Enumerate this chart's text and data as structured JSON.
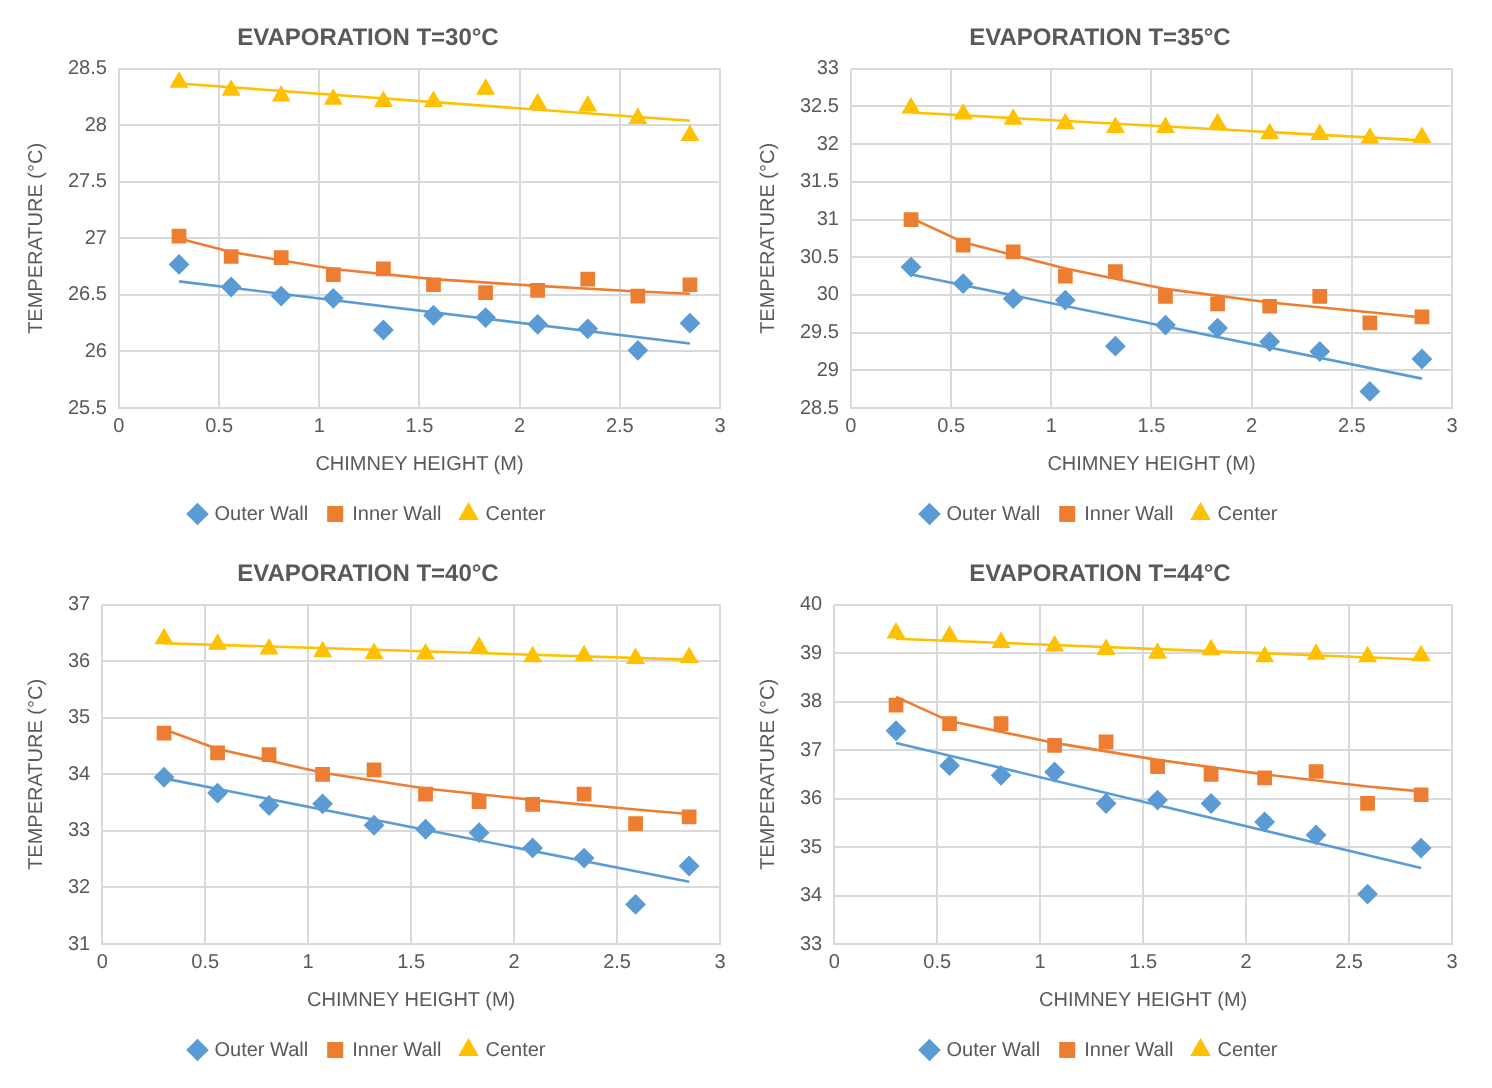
{
  "chart_data": [
    {
      "type": "scatter",
      "title": "EVAPORATION T=30°C",
      "xlabel": "CHIMNEY HEIGHT (M)",
      "ylabel": "TEMPERATURE (°C)",
      "xlim": [
        0,
        3
      ],
      "xticks": [
        0,
        0.5,
        1,
        1.5,
        2,
        2.5,
        3
      ],
      "ylim": [
        25.5,
        28.5
      ],
      "yticks": [
        25.5,
        26,
        26.5,
        27,
        27.5,
        28,
        28.5
      ],
      "grid": true,
      "legend": "bottom",
      "series": [
        {
          "name": "Outer Wall",
          "color": "#5b9bd5",
          "marker": "diamond",
          "x": [
            0.3,
            0.56,
            0.81,
            1.07,
            1.32,
            1.57,
            1.83,
            2.09,
            2.34,
            2.59,
            2.85
          ],
          "values": [
            26.77,
            26.57,
            26.49,
            26.47,
            26.19,
            26.32,
            26.3,
            26.24,
            26.2,
            26.01,
            26.25
          ]
        },
        {
          "name": "Inner Wall",
          "color": "#ed7d31",
          "marker": "square",
          "x": [
            0.3,
            0.56,
            0.81,
            1.07,
            1.32,
            1.57,
            1.83,
            2.09,
            2.34,
            2.59,
            2.85
          ],
          "values": [
            27.02,
            26.84,
            26.83,
            26.68,
            26.73,
            26.59,
            26.52,
            26.54,
            26.64,
            26.49,
            26.59
          ]
        },
        {
          "name": "Center",
          "color": "#ffc000",
          "marker": "triangle",
          "x": [
            0.3,
            0.56,
            0.81,
            1.07,
            1.32,
            1.57,
            1.83,
            2.09,
            2.34,
            2.59,
            2.85
          ],
          "values": [
            28.38,
            28.31,
            28.26,
            28.23,
            28.21,
            28.21,
            28.32,
            28.19,
            28.17,
            28.06,
            27.91
          ]
        },
        {
          "type": "line",
          "color": "#5b9bd5",
          "marker": "none",
          "x": [
            0.3,
            2.85
          ],
          "values": [
            26.62,
            26.07
          ]
        },
        {
          "type": "line",
          "color": "#ed7d31",
          "marker": "none",
          "x": [
            0.3,
            0.56,
            1.07,
            1.57,
            2.09,
            2.59,
            2.85
          ],
          "values": [
            27.0,
            26.88,
            26.73,
            26.64,
            26.58,
            26.53,
            26.51
          ]
        },
        {
          "type": "line",
          "color": "#ffc000",
          "marker": "none",
          "x": [
            0.3,
            2.85
          ],
          "values": [
            28.37,
            28.04
          ]
        }
      ]
    },
    {
      "type": "scatter",
      "title": "EVAPORATION T=35°C",
      "xlabel": "CHIMNEY HEIGHT (M)",
      "ylabel": "TEMPERATURE (°C)",
      "xlim": [
        0,
        3
      ],
      "xticks": [
        0,
        0.5,
        1,
        1.5,
        2,
        2.5,
        3
      ],
      "ylim": [
        28.5,
        33
      ],
      "yticks": [
        28.5,
        29,
        29.5,
        30,
        30.5,
        31,
        31.5,
        32,
        32.5,
        33
      ],
      "grid": true,
      "legend": "bottom",
      "series": [
        {
          "name": "Outer Wall",
          "color": "#5b9bd5",
          "marker": "diamond",
          "x": [
            0.3,
            0.56,
            0.81,
            1.07,
            1.32,
            1.57,
            1.83,
            2.09,
            2.34,
            2.59,
            2.85
          ],
          "values": [
            30.37,
            30.15,
            29.95,
            29.93,
            29.32,
            29.6,
            29.56,
            29.38,
            29.25,
            28.72,
            29.15
          ]
        },
        {
          "name": "Inner Wall",
          "color": "#ed7d31",
          "marker": "square",
          "x": [
            0.3,
            0.56,
            0.81,
            1.07,
            1.32,
            1.57,
            1.83,
            2.09,
            2.34,
            2.59,
            2.85
          ],
          "values": [
            31.0,
            30.66,
            30.57,
            30.25,
            30.31,
            29.98,
            29.88,
            29.85,
            29.98,
            29.63,
            29.71
          ]
        },
        {
          "name": "Center",
          "color": "#ffc000",
          "marker": "triangle",
          "x": [
            0.3,
            0.56,
            0.81,
            1.07,
            1.32,
            1.57,
            1.83,
            2.09,
            2.34,
            2.59,
            2.85
          ],
          "values": [
            32.48,
            32.4,
            32.33,
            32.27,
            32.22,
            32.22,
            32.27,
            32.14,
            32.13,
            32.08,
            32.09
          ]
        },
        {
          "type": "line",
          "color": "#5b9bd5",
          "marker": "none",
          "x": [
            0.3,
            2.85
          ],
          "values": [
            30.27,
            28.89
          ]
        },
        {
          "type": "line",
          "color": "#ed7d31",
          "marker": "none",
          "x": [
            0.3,
            0.56,
            1.07,
            1.57,
            2.09,
            2.59,
            2.85
          ],
          "values": [
            31.02,
            30.7,
            30.35,
            30.08,
            29.9,
            29.77,
            29.7
          ]
        },
        {
          "type": "line",
          "color": "#ffc000",
          "marker": "none",
          "x": [
            0.3,
            2.85
          ],
          "values": [
            32.42,
            32.05
          ]
        }
      ]
    },
    {
      "type": "scatter",
      "title": "EVAPORATION T=40°C",
      "xlabel": "CHIMNEY HEIGHT (M)",
      "ylabel": "TEMPERATURE (°C)",
      "xlim": [
        0,
        3
      ],
      "xticks": [
        0,
        0.5,
        1,
        1.5,
        2,
        2.5,
        3
      ],
      "ylim": [
        31,
        37
      ],
      "yticks": [
        31,
        32,
        33,
        34,
        35,
        36,
        37
      ],
      "grid": true,
      "legend": "bottom",
      "series": [
        {
          "name": "Outer Wall",
          "color": "#5b9bd5",
          "marker": "diamond",
          "x": [
            0.3,
            0.56,
            0.81,
            1.07,
            1.32,
            1.57,
            1.83,
            2.09,
            2.34,
            2.59,
            2.85
          ],
          "values": [
            33.95,
            33.67,
            33.45,
            33.48,
            33.1,
            33.03,
            32.97,
            32.7,
            32.52,
            31.7,
            32.38
          ]
        },
        {
          "name": "Inner Wall",
          "color": "#ed7d31",
          "marker": "square",
          "x": [
            0.3,
            0.56,
            0.81,
            1.07,
            1.32,
            1.57,
            1.83,
            2.09,
            2.34,
            2.59,
            2.85
          ],
          "values": [
            34.73,
            34.38,
            34.35,
            34.0,
            34.08,
            33.65,
            33.52,
            33.47,
            33.65,
            33.13,
            33.25
          ]
        },
        {
          "name": "Center",
          "color": "#ffc000",
          "marker": "triangle",
          "x": [
            0.3,
            0.56,
            0.81,
            1.07,
            1.32,
            1.57,
            1.83,
            2.09,
            2.34,
            2.59,
            2.85
          ],
          "values": [
            36.4,
            36.3,
            36.22,
            36.17,
            36.14,
            36.13,
            36.25,
            36.08,
            36.1,
            36.05,
            36.07
          ]
        },
        {
          "type": "line",
          "color": "#5b9bd5",
          "marker": "none",
          "x": [
            0.3,
            2.85
          ],
          "values": [
            33.93,
            32.1
          ]
        },
        {
          "type": "line",
          "color": "#ed7d31",
          "marker": "none",
          "x": [
            0.3,
            0.56,
            1.07,
            1.57,
            2.09,
            2.59,
            2.85
          ],
          "values": [
            34.8,
            34.45,
            34.03,
            33.75,
            33.55,
            33.38,
            33.3
          ]
        },
        {
          "type": "line",
          "color": "#ffc000",
          "marker": "none",
          "x": [
            0.3,
            2.85
          ],
          "values": [
            36.32,
            36.03
          ]
        }
      ]
    },
    {
      "type": "scatter",
      "title": "EVAPORATION T=44°C",
      "xlabel": "CHIMNEY HEIGHT (M)",
      "ylabel": "TEMPERATURE (°C)",
      "xlim": [
        0,
        3
      ],
      "xticks": [
        0,
        0.5,
        1,
        1.5,
        2,
        2.5,
        3
      ],
      "ylim": [
        33,
        40
      ],
      "yticks": [
        33,
        34,
        35,
        36,
        37,
        38,
        39,
        40
      ],
      "grid": true,
      "legend": "bottom",
      "series": [
        {
          "name": "Outer Wall",
          "color": "#5b9bd5",
          "marker": "diamond",
          "x": [
            0.3,
            0.56,
            0.81,
            1.07,
            1.32,
            1.57,
            1.83,
            2.09,
            2.34,
            2.59,
            2.85
          ],
          "values": [
            37.4,
            36.68,
            36.48,
            36.55,
            35.9,
            35.97,
            35.9,
            35.52,
            35.25,
            34.03,
            34.98
          ]
        },
        {
          "name": "Inner Wall",
          "color": "#ed7d31",
          "marker": "square",
          "x": [
            0.3,
            0.56,
            0.81,
            1.07,
            1.32,
            1.57,
            1.83,
            2.09,
            2.34,
            2.59,
            2.85
          ],
          "values": [
            37.93,
            37.55,
            37.55,
            37.1,
            37.17,
            36.66,
            36.5,
            36.43,
            36.56,
            35.9,
            36.08
          ]
        },
        {
          "name": "Center",
          "color": "#ffc000",
          "marker": "triangle",
          "x": [
            0.3,
            0.56,
            0.81,
            1.07,
            1.32,
            1.57,
            1.83,
            2.09,
            2.34,
            2.59,
            2.85
          ],
          "values": [
            39.42,
            39.35,
            39.22,
            39.15,
            39.08,
            39.0,
            39.07,
            38.93,
            38.98,
            38.93,
            38.95
          ]
        },
        {
          "type": "line",
          "color": "#5b9bd5",
          "marker": "none",
          "x": [
            0.3,
            2.85
          ],
          "values": [
            37.15,
            34.57
          ]
        },
        {
          "type": "line",
          "color": "#ed7d31",
          "marker": "none",
          "x": [
            0.3,
            0.56,
            1.07,
            1.57,
            2.09,
            2.59,
            2.85
          ],
          "values": [
            38.1,
            37.6,
            37.15,
            36.8,
            36.5,
            36.25,
            36.15
          ]
        },
        {
          "type": "line",
          "color": "#ffc000",
          "marker": "none",
          "x": [
            0.3,
            2.85
          ],
          "values": [
            39.3,
            38.87
          ]
        }
      ]
    }
  ]
}
